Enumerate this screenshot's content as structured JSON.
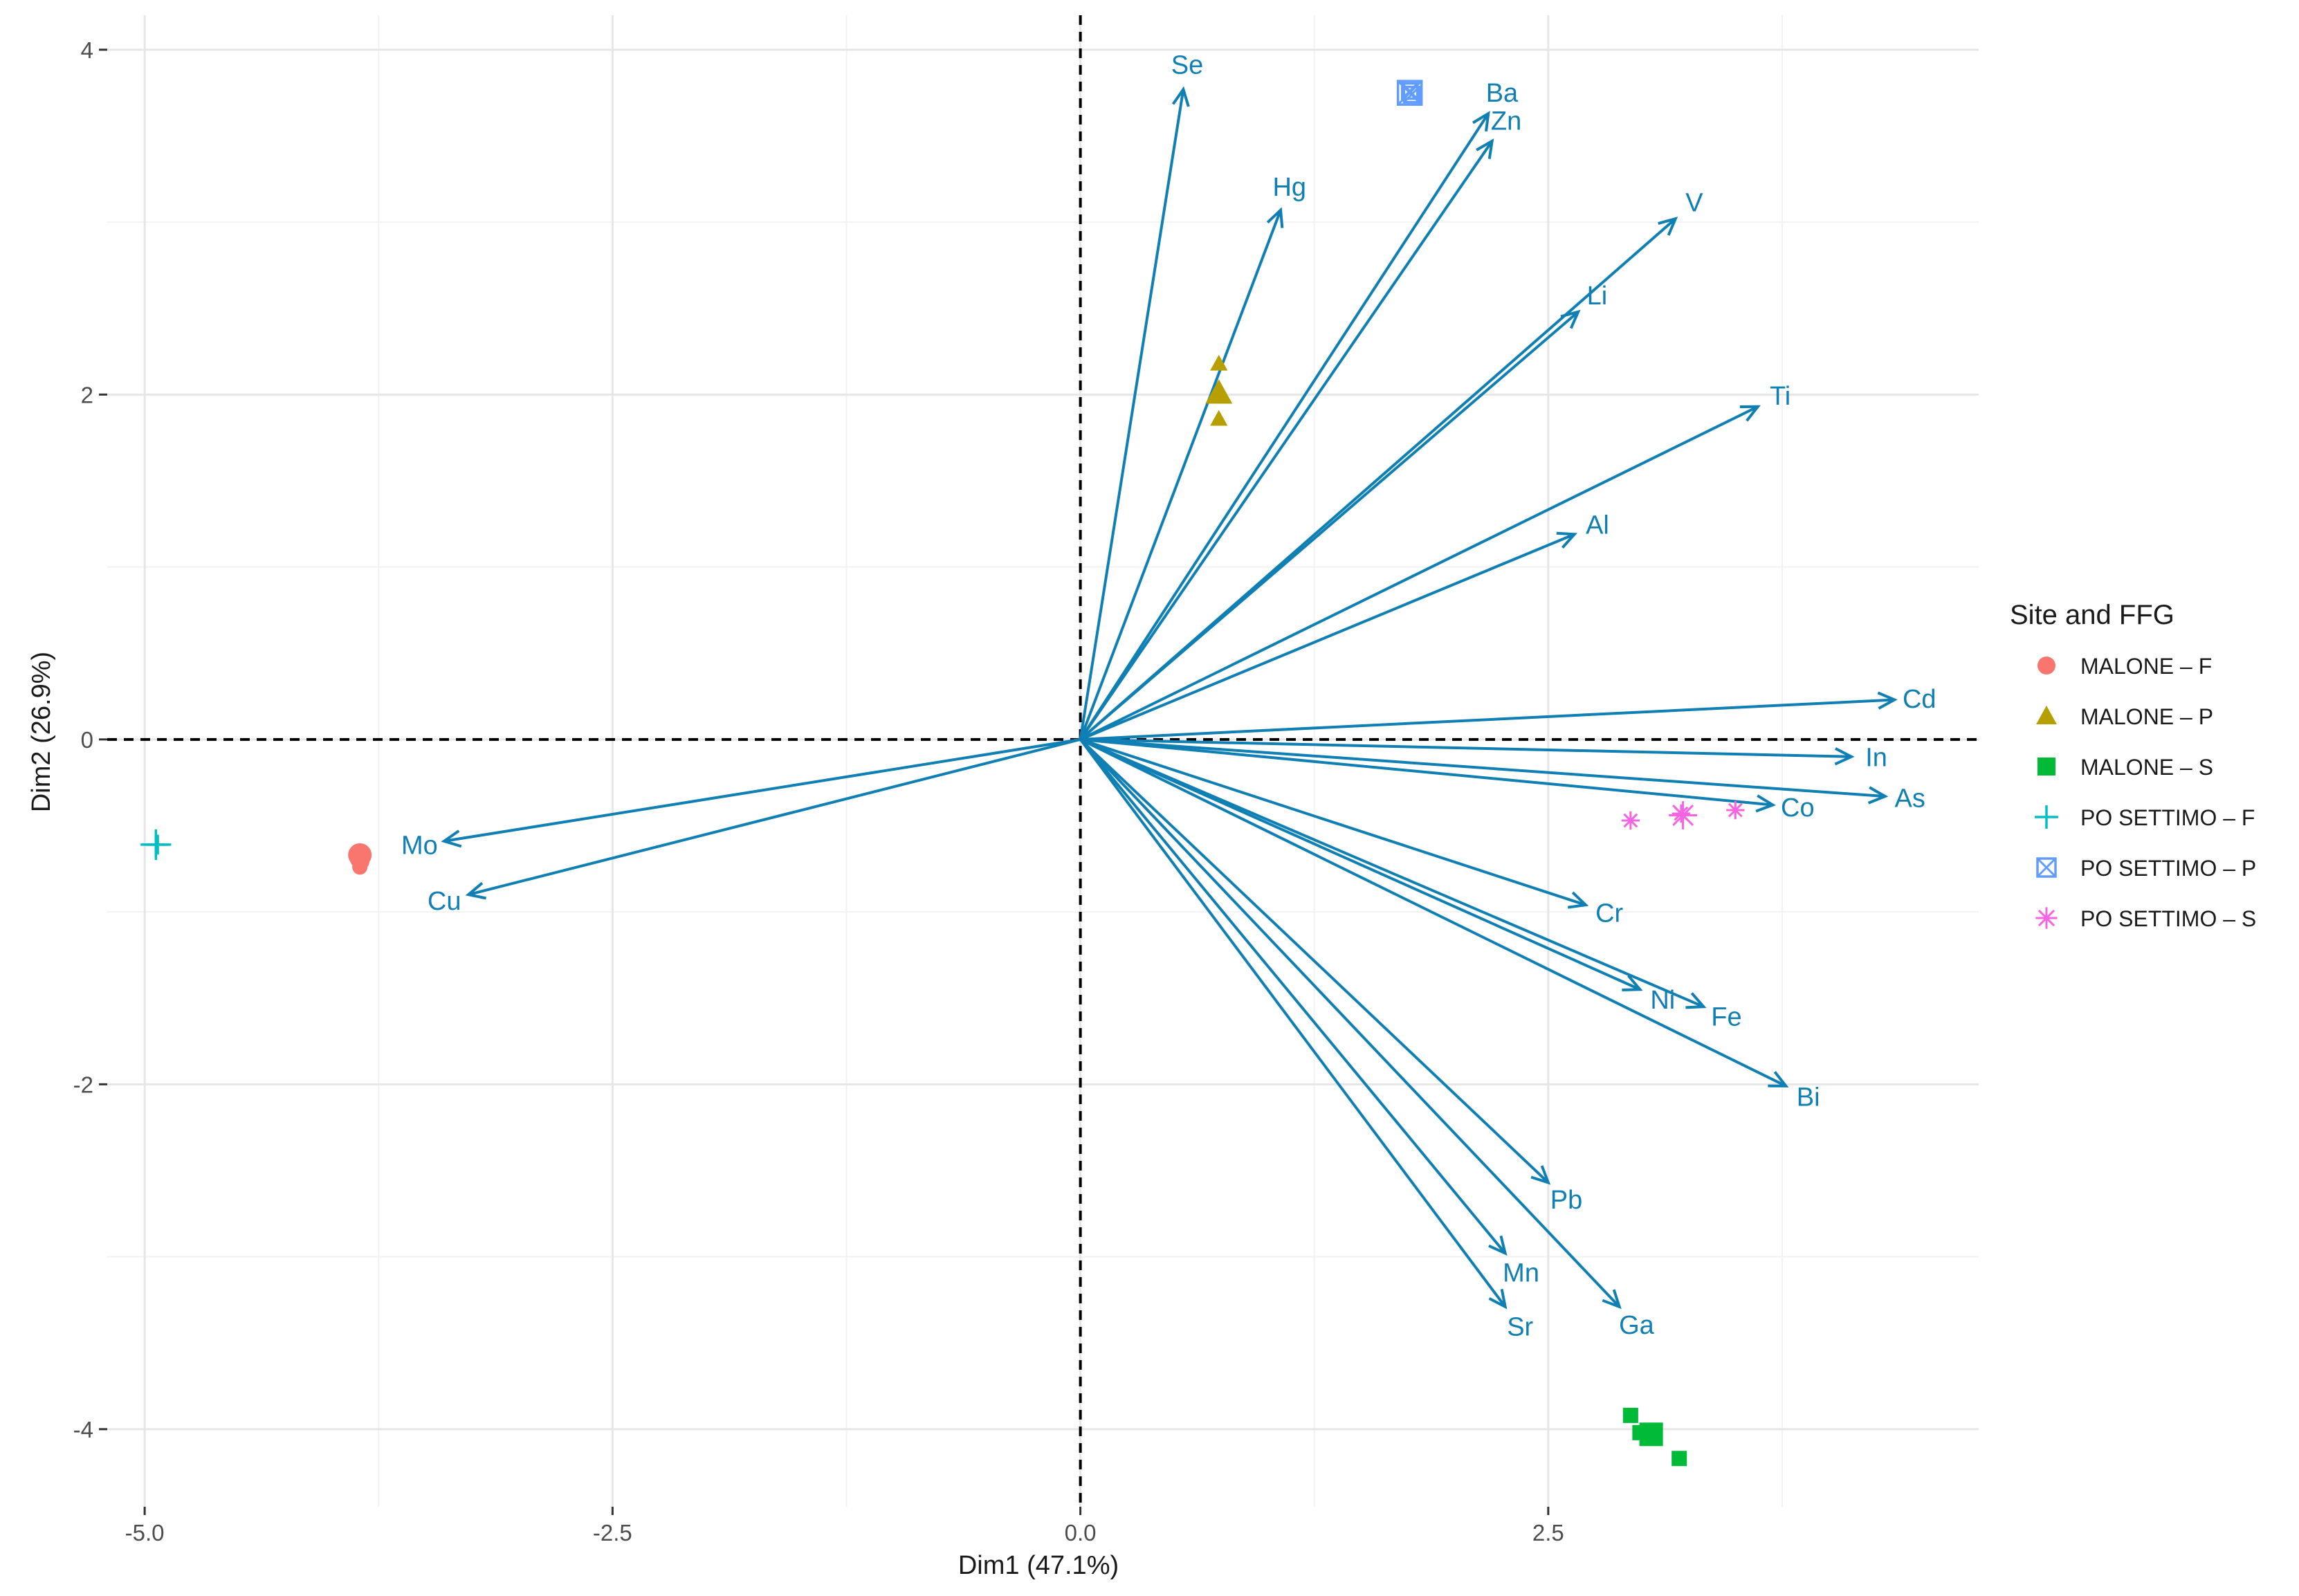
{
  "chart_data": {
    "type": "scatter",
    "subtype": "pca-biplot",
    "title": "",
    "xlabel": "Dim1 (47.1%)",
    "ylabel": "Dim2 (26.9%)",
    "xlim": [
      -5.2,
      4.8
    ],
    "ylim": [
      -4.45,
      4.2
    ],
    "x_ticks": [
      -5.0,
      -2.5,
      0.0,
      2.5
    ],
    "x_tick_labels": [
      "-5.0",
      "-2.5",
      "0.0",
      "2.5"
    ],
    "y_ticks": [
      -4,
      -2,
      0,
      2,
      4
    ],
    "y_tick_labels": [
      "-4",
      "-2",
      "0",
      "2",
      "4"
    ],
    "grid": true,
    "reference_lines": {
      "x": 0,
      "y": 0,
      "style": "dashed"
    },
    "arrow_color": "#0f7fb4",
    "variables": [
      {
        "name": "Se",
        "x": 0.55,
        "y": 3.77
      },
      {
        "name": "Ba",
        "x": 2.18,
        "y": 3.63
      },
      {
        "name": "Zn",
        "x": 2.2,
        "y": 3.47
      },
      {
        "name": "Hg",
        "x": 1.07,
        "y": 3.07
      },
      {
        "name": "V",
        "x": 3.18,
        "y": 3.02
      },
      {
        "name": "Li",
        "x": 2.66,
        "y": 2.48
      },
      {
        "name": "Ti",
        "x": 3.62,
        "y": 1.93
      },
      {
        "name": "Al",
        "x": 2.64,
        "y": 1.19
      },
      {
        "name": "Cd",
        "x": 4.35,
        "y": 0.23
      },
      {
        "name": "In",
        "x": 4.12,
        "y": -0.1
      },
      {
        "name": "As",
        "x": 4.3,
        "y": -0.33
      },
      {
        "name": "Co",
        "x": 3.7,
        "y": -0.38
      },
      {
        "name": "Cr",
        "x": 2.7,
        "y": -0.96
      },
      {
        "name": "Ni",
        "x": 2.99,
        "y": -1.45
      },
      {
        "name": "Fe",
        "x": 3.33,
        "y": -1.55
      },
      {
        "name": "Bi",
        "x": 3.77,
        "y": -2.01
      },
      {
        "name": "Pb",
        "x": 2.5,
        "y": -2.57
      },
      {
        "name": "Mn",
        "x": 2.27,
        "y": -2.98
      },
      {
        "name": "Sr",
        "x": 2.27,
        "y": -3.29
      },
      {
        "name": "Ga",
        "x": 2.88,
        "y": -3.29
      },
      {
        "name": "Mo",
        "x": -3.4,
        "y": -0.59
      },
      {
        "name": "Cu",
        "x": -3.27,
        "y": -0.9
      }
    ],
    "legend": {
      "title": "Site and FFG",
      "position": "right",
      "entries": [
        {
          "label": "MALONE – F",
          "color": "#f8766d",
          "shape": "circle"
        },
        {
          "label": "MALONE – P",
          "color": "#b79f00",
          "shape": "triangle"
        },
        {
          "label": "MALONE – S",
          "color": "#00ba38",
          "shape": "square"
        },
        {
          "label": "PO SETTIMO – F",
          "color": "#00bfc4",
          "shape": "plus"
        },
        {
          "label": "PO SETTIMO – P",
          "color": "#619cff",
          "shape": "square-x"
        },
        {
          "label": "PO SETTIMO – S",
          "color": "#f564e3",
          "shape": "asterisk"
        }
      ]
    },
    "series": [
      {
        "name": "MALONE – F",
        "points": [
          [
            -3.86,
            -0.65
          ],
          [
            -3.85,
            -0.68
          ],
          [
            -3.86,
            -0.7
          ],
          [
            -3.85,
            -0.67
          ],
          [
            -3.84,
            -0.71
          ],
          [
            -3.85,
            -0.74
          ]
        ]
      },
      {
        "name": "MALONE – P",
        "points": [
          [
            0.74,
            2.18
          ],
          [
            0.74,
            2.01
          ],
          [
            0.74,
            1.86
          ]
        ]
      },
      {
        "name": "MALONE – S",
        "points": [
          [
            2.94,
            -3.92
          ],
          [
            2.99,
            -4.02
          ],
          [
            3.05,
            -4.03
          ],
          [
            3.06,
            -4.04
          ],
          [
            3.2,
            -4.17
          ]
        ]
      },
      {
        "name": "PO SETTIMO – F",
        "points": [
          [
            -4.94,
            -0.61
          ],
          [
            -4.94,
            -0.61
          ],
          [
            -4.93,
            -0.61
          ]
        ]
      },
      {
        "name": "PO SETTIMO – P",
        "points": [
          [
            1.76,
            3.76
          ],
          [
            1.76,
            3.75
          ],
          [
            1.77,
            3.74
          ]
        ]
      },
      {
        "name": "PO SETTIMO – S",
        "points": [
          [
            2.94,
            -0.47
          ],
          [
            3.21,
            -0.43
          ],
          [
            3.22,
            -0.44
          ],
          [
            3.5,
            -0.41
          ]
        ]
      }
    ]
  }
}
